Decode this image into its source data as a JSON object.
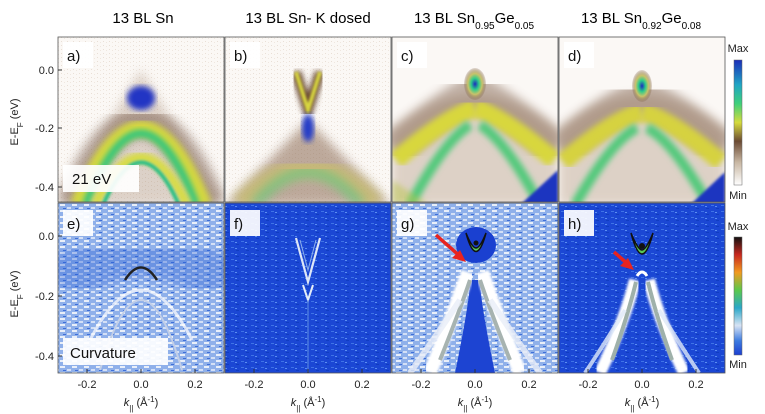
{
  "titles": [
    {
      "base": "13 BL Sn",
      "parts": []
    },
    {
      "base": "13 BL Sn- K dosed",
      "parts": []
    },
    {
      "base": "13 BL Sn",
      "parts": [
        [
          "0.95",
          "Ge"
        ],
        [
          "0.05",
          ""
        ]
      ]
    },
    {
      "base": "13 BL Sn",
      "parts": [
        [
          "0.92",
          "Ge"
        ],
        [
          "0.08",
          ""
        ]
      ]
    }
  ],
  "panel_labels": [
    "a)",
    "b)",
    "c)",
    "d)",
    "e)",
    "f)",
    "g)",
    "h)"
  ],
  "ylabel": {
    "main": "E-E",
    "sub": "F",
    "unit": " (eV)"
  },
  "xlabel": {
    "k": "k",
    "sub": "||",
    "unit": " (Å",
    "sup": "-1",
    "close": ")"
  },
  "y_ticks": [
    "0.0",
    "-0.2",
    "-0.4"
  ],
  "x_ticks": [
    "-0.2",
    "0.0",
    "0.2"
  ],
  "photon_energy": "21 eV",
  "method_label": "Curvature",
  "colorbar_top": {
    "max": "Max",
    "min": "Min"
  },
  "colorbar_bottom": {
    "max": "Max",
    "min": "Min"
  },
  "colors": {
    "arrow": "#e8231f",
    "curv_bg": "#1346d6"
  }
}
